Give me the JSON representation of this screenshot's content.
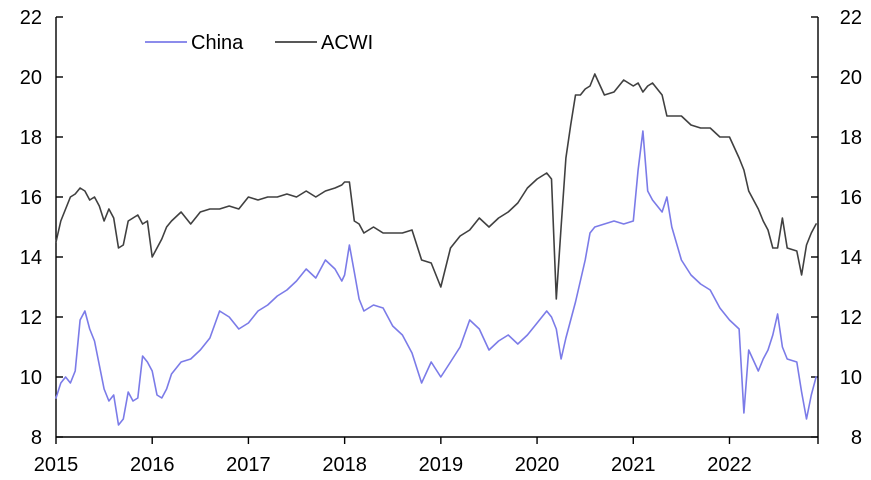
{
  "chart_data": {
    "type": "line",
    "title": "",
    "xlabel": "",
    "ylabel": "",
    "xlim": [
      2015.0,
      2022.92
    ],
    "ylim": [
      8,
      22
    ],
    "y_ticks": [
      8,
      10,
      12,
      14,
      16,
      18,
      20,
      22
    ],
    "x_ticks": [
      2015,
      2016,
      2017,
      2018,
      2019,
      2020,
      2021,
      2022
    ],
    "x_tick_labels": [
      "2015",
      "2016",
      "2017",
      "2018",
      "2019",
      "2020",
      "2021",
      "2022"
    ],
    "right_axis": true,
    "grid": false,
    "legend_position": "top-left",
    "series": [
      {
        "name": "China",
        "color": "#7b7be8",
        "x": [
          2015.0,
          2015.05,
          2015.1,
          2015.15,
          2015.2,
          2015.25,
          2015.3,
          2015.35,
          2015.4,
          2015.45,
          2015.5,
          2015.55,
          2015.6,
          2015.65,
          2015.7,
          2015.75,
          2015.8,
          2015.85,
          2015.9,
          2015.95,
          2016.0,
          2016.05,
          2016.1,
          2016.15,
          2016.2,
          2016.3,
          2016.4,
          2016.5,
          2016.6,
          2016.7,
          2016.8,
          2016.9,
          2017.0,
          2017.1,
          2017.2,
          2017.3,
          2017.4,
          2017.5,
          2017.6,
          2017.7,
          2017.8,
          2017.9,
          2017.97,
          2018.0,
          2018.05,
          2018.1,
          2018.15,
          2018.2,
          2018.3,
          2018.4,
          2018.5,
          2018.6,
          2018.7,
          2018.8,
          2018.9,
          2019.0,
          2019.1,
          2019.2,
          2019.3,
          2019.4,
          2019.5,
          2019.6,
          2019.7,
          2019.8,
          2019.9,
          2020.0,
          2020.1,
          2020.15,
          2020.2,
          2020.25,
          2020.3,
          2020.4,
          2020.5,
          2020.55,
          2020.6,
          2020.7,
          2020.8,
          2020.9,
          2021.0,
          2021.05,
          2021.1,
          2021.15,
          2021.2,
          2021.3,
          2021.35,
          2021.4,
          2021.5,
          2021.6,
          2021.7,
          2021.8,
          2021.9,
          2022.0,
          2022.1,
          2022.15,
          2022.2,
          2022.3,
          2022.35,
          2022.4,
          2022.45,
          2022.5,
          2022.55,
          2022.6,
          2022.7,
          2022.75,
          2022.8,
          2022.85,
          2022.9
        ],
        "values": [
          9.3,
          9.8,
          10.0,
          9.8,
          10.2,
          11.9,
          12.2,
          11.6,
          11.2,
          10.4,
          9.6,
          9.2,
          9.4,
          8.4,
          8.6,
          9.5,
          9.2,
          9.3,
          10.7,
          10.5,
          10.2,
          9.4,
          9.3,
          9.6,
          10.1,
          10.5,
          10.6,
          10.9,
          11.3,
          12.2,
          12.0,
          11.6,
          11.8,
          12.2,
          12.4,
          12.7,
          12.9,
          13.2,
          13.6,
          13.3,
          13.9,
          13.6,
          13.2,
          13.4,
          14.4,
          13.5,
          12.6,
          12.2,
          12.4,
          12.3,
          11.7,
          11.4,
          10.8,
          9.8,
          10.5,
          10.0,
          10.5,
          11.0,
          11.9,
          11.6,
          10.9,
          11.2,
          11.4,
          11.1,
          11.4,
          11.8,
          12.2,
          12.0,
          11.6,
          10.6,
          11.3,
          12.5,
          13.9,
          14.8,
          15.0,
          15.1,
          15.2,
          15.1,
          15.2,
          16.9,
          18.2,
          16.2,
          15.9,
          15.5,
          16.0,
          15.0,
          13.9,
          13.4,
          13.1,
          12.9,
          12.3,
          11.9,
          11.6,
          8.8,
          10.9,
          10.2,
          10.6,
          10.9,
          11.4,
          12.1,
          11.0,
          10.6,
          10.5,
          9.5,
          8.6,
          9.4,
          10.0
        ]
      },
      {
        "name": "ACWI",
        "color": "#404040",
        "x": [
          2015.0,
          2015.05,
          2015.1,
          2015.15,
          2015.2,
          2015.25,
          2015.3,
          2015.35,
          2015.4,
          2015.45,
          2015.5,
          2015.55,
          2015.6,
          2015.65,
          2015.7,
          2015.75,
          2015.8,
          2015.85,
          2015.9,
          2015.95,
          2016.0,
          2016.05,
          2016.1,
          2016.15,
          2016.2,
          2016.3,
          2016.4,
          2016.5,
          2016.6,
          2016.7,
          2016.8,
          2016.9,
          2017.0,
          2017.1,
          2017.2,
          2017.3,
          2017.4,
          2017.5,
          2017.6,
          2017.7,
          2017.8,
          2017.9,
          2017.97,
          2018.0,
          2018.05,
          2018.1,
          2018.15,
          2018.2,
          2018.3,
          2018.4,
          2018.5,
          2018.6,
          2018.7,
          2018.8,
          2018.9,
          2019.0,
          2019.1,
          2019.2,
          2019.3,
          2019.4,
          2019.5,
          2019.6,
          2019.7,
          2019.8,
          2019.9,
          2020.0,
          2020.1,
          2020.15,
          2020.2,
          2020.25,
          2020.3,
          2020.35,
          2020.4,
          2020.45,
          2020.5,
          2020.55,
          2020.6,
          2020.7,
          2020.8,
          2020.9,
          2021.0,
          2021.05,
          2021.1,
          2021.15,
          2021.2,
          2021.3,
          2021.35,
          2021.4,
          2021.5,
          2021.6,
          2021.7,
          2021.8,
          2021.9,
          2022.0,
          2022.1,
          2022.15,
          2022.2,
          2022.3,
          2022.35,
          2022.4,
          2022.45,
          2022.5,
          2022.55,
          2022.6,
          2022.7,
          2022.75,
          2022.8,
          2022.85,
          2022.9
        ],
        "values": [
          14.5,
          15.2,
          15.6,
          16.0,
          16.1,
          16.3,
          16.2,
          15.9,
          16.0,
          15.7,
          15.2,
          15.6,
          15.3,
          14.3,
          14.4,
          15.2,
          15.3,
          15.4,
          15.1,
          15.2,
          14.0,
          14.3,
          14.6,
          15.0,
          15.2,
          15.5,
          15.1,
          15.5,
          15.6,
          15.6,
          15.7,
          15.6,
          16.0,
          15.9,
          16.0,
          16.0,
          16.1,
          16.0,
          16.2,
          16.0,
          16.2,
          16.3,
          16.4,
          16.5,
          16.5,
          15.2,
          15.1,
          14.8,
          15.0,
          14.8,
          14.8,
          14.8,
          14.9,
          13.9,
          13.8,
          13.0,
          14.3,
          14.7,
          14.9,
          15.3,
          15.0,
          15.3,
          15.5,
          15.8,
          16.3,
          16.6,
          16.8,
          16.6,
          12.6,
          15.0,
          17.3,
          18.4,
          19.4,
          19.4,
          19.6,
          19.7,
          20.1,
          19.4,
          19.5,
          19.9,
          19.7,
          19.8,
          19.5,
          19.7,
          19.8,
          19.4,
          18.7,
          18.7,
          18.7,
          18.4,
          18.3,
          18.3,
          18.0,
          18.0,
          17.3,
          16.9,
          16.2,
          15.6,
          15.2,
          14.9,
          14.3,
          14.3,
          15.3,
          14.3,
          14.2,
          13.4,
          14.4,
          14.8,
          15.1
        ]
      }
    ]
  }
}
